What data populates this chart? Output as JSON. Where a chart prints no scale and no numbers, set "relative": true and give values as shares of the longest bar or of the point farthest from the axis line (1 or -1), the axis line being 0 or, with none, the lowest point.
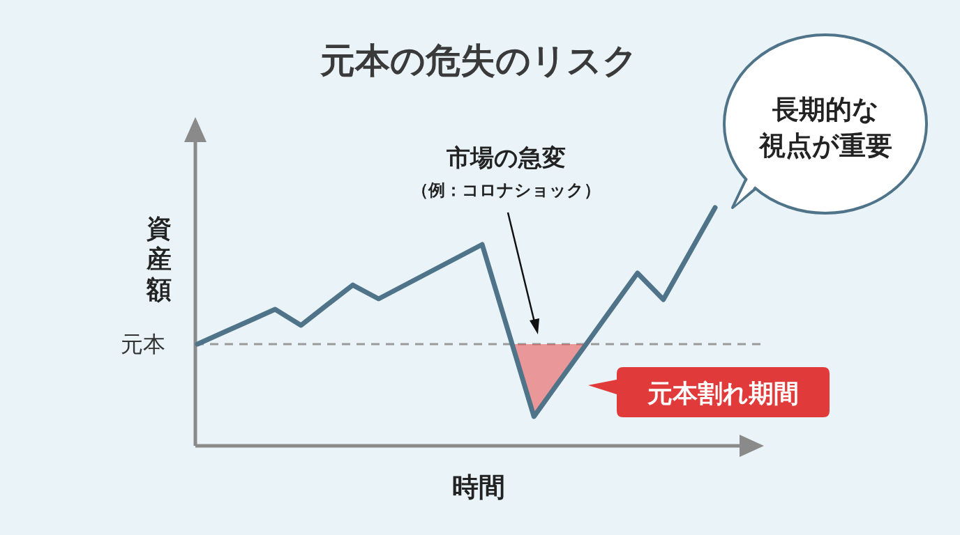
{
  "chart_data": {
    "type": "line",
    "title": "元本の危失のリスク",
    "xlabel": "時間",
    "ylabel": "資産額",
    "relative": true,
    "categories": [
      null,
      null,
      null,
      null,
      null,
      null,
      null,
      null,
      null,
      null,
      null,
      null,
      null,
      null,
      null,
      null,
      null,
      null,
      null,
      null,
      null
    ],
    "series": [
      {
        "color": "#4f7489",
        "values": [
          0.427,
          0.476,
          0.524,
          0.573,
          0.506,
          0.591,
          0.675,
          0.617,
          0.674,
          0.731,
          0.788,
          0.845,
          0.484,
          0.123,
          0.274,
          0.424,
          0.575,
          0.725,
          0.614,
          0.807,
          1
        ]
      }
    ],
    "ref_lines": [
      {
        "axis": "y",
        "value": 0.427,
        "label": "元本",
        "color": "#9a9a9a",
        "line_style": "dashed"
      }
    ],
    "annotations": [
      "市場の急変",
      "（例：コロナショック）",
      "元本割れ期間",
      "長期的な視点が重要"
    ],
    "marker": "none",
    "line_style": "solid"
  }
}
